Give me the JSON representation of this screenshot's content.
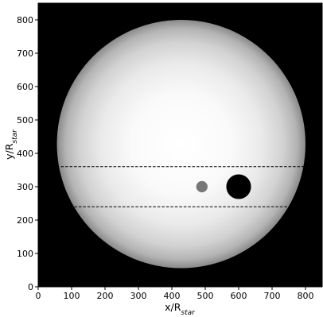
{
  "chart_data": {
    "type": "scatter",
    "subtype": "stellar-disk-image",
    "xlabel": "x/R",
    "xlabel_sub": "star",
    "ylabel": "y/R",
    "ylabel_sub": "star",
    "xlim": [
      0,
      850
    ],
    "ylim": [
      0,
      850
    ],
    "x_ticks": [
      0,
      100,
      200,
      300,
      400,
      500,
      600,
      700,
      800
    ],
    "y_ticks": [
      0,
      100,
      200,
      300,
      400,
      500,
      600,
      700,
      800
    ],
    "grid": false,
    "legend": "none",
    "background_color": "#000000",
    "star": {
      "center": [
        428,
        428
      ],
      "radius": 372,
      "limb_darkening": true,
      "center_color": "#ffffff",
      "limb_color": "#8a8a8a"
    },
    "transit_chords": [
      {
        "y": 360,
        "x_start": 68,
        "x_end": 798,
        "style": "dashed",
        "color": "#000000"
      },
      {
        "y": 240,
        "x_start": 108,
        "x_end": 752,
        "style": "dashed",
        "color": "#000000"
      }
    ],
    "bodies": [
      {
        "name": "",
        "x": 600,
        "y": 300,
        "radius": 37,
        "color": "#000000"
      },
      {
        "name": "",
        "x": 490,
        "y": 300,
        "radius": 17,
        "color": "#777777"
      }
    ]
  }
}
